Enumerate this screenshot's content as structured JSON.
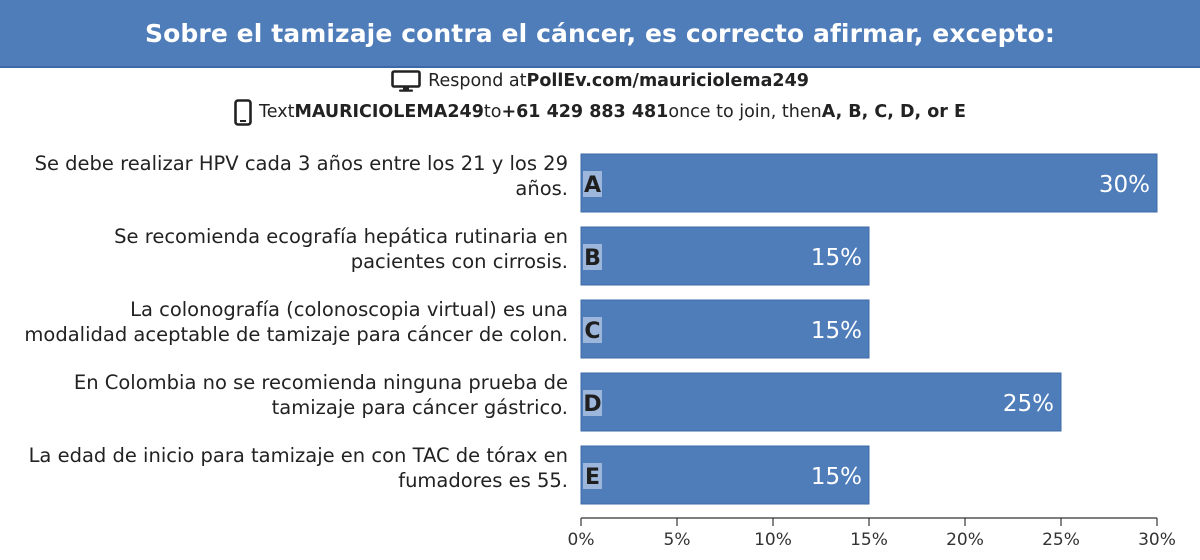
{
  "title": "Sobre el tamizaje contra el cáncer, es correcto afirmar, excepto:",
  "instructions": {
    "line1_prefix": "Respond at ",
    "line1_url": "PollEv.com/mauriciolema249",
    "line2_prefix": "Text ",
    "line2_code": "MAURICIOLEMA249",
    "line2_to": " to ",
    "line2_phone": "+61 429 883 481",
    "line2_mid": " once to join, then ",
    "line2_options": "A, B, C, D, or E"
  },
  "colors": {
    "header": "#4f7dba",
    "bar": "#4f7dba",
    "bar_edge": "#3d6aa6",
    "letter_box": "#9db7dc"
  },
  "chart_data": {
    "type": "bar",
    "orientation": "horizontal",
    "categories": [
      "Se debe realizar HPV cada 3 años entre los 21 y los 29 años.",
      "Se recomienda ecografía hepática rutinaria en pacientes con cirrosis.",
      "La colonografía (colonoscopia virtual) es una modalidad aceptable de tamizaje para cáncer de colon.",
      "En Colombia no se recomienda ninguna prueba de tamizaje para cáncer gástrico.",
      "La edad de inicio para tamizaje en con TAC de tórax en fumadores es 55."
    ],
    "label_lines": [
      [
        "Se debe realizar HPV cada 3 años entre los 21 y los 29",
        "años."
      ],
      [
        "Se recomienda ecografía hepática rutinaria en",
        "pacientes con cirrosis."
      ],
      [
        "La colonografía (colonoscopia virtual) es una",
        "modalidad aceptable de tamizaje para cáncer de colon."
      ],
      [
        "En Colombia no se recomienda ninguna prueba de",
        "tamizaje para cáncer gástrico."
      ],
      [
        "La edad de inicio para tamizaje en con TAC de tórax en",
        "fumadores es 55."
      ]
    ],
    "letters": [
      "A",
      "B",
      "C",
      "D",
      "E"
    ],
    "values": [
      30,
      15,
      15,
      25,
      15
    ],
    "value_labels": [
      "30%",
      "15%",
      "15%",
      "25%",
      "15%"
    ],
    "xlim": [
      0,
      30
    ],
    "xticks": [
      0,
      5,
      10,
      15,
      20,
      25,
      30
    ],
    "xtick_labels": [
      "0%",
      "5%",
      "10%",
      "15%",
      "20%",
      "25%",
      "30%"
    ],
    "grid": false
  }
}
